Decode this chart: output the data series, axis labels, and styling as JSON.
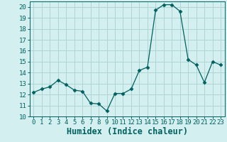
{
  "xlabel": "Humidex (Indice chaleur)",
  "ylabel": "",
  "xlim": [
    -0.5,
    23.5
  ],
  "ylim": [
    10,
    20.5
  ],
  "yticks": [
    10,
    11,
    12,
    13,
    14,
    15,
    16,
    17,
    18,
    19,
    20
  ],
  "xticks": [
    0,
    1,
    2,
    3,
    4,
    5,
    6,
    7,
    8,
    9,
    10,
    11,
    12,
    13,
    14,
    15,
    16,
    17,
    18,
    19,
    20,
    21,
    22,
    23
  ],
  "x": [
    0,
    1,
    2,
    3,
    4,
    5,
    6,
    7,
    8,
    9,
    10,
    11,
    12,
    13,
    14,
    15,
    16,
    17,
    18,
    19,
    20,
    21,
    22,
    23
  ],
  "y": [
    12.2,
    12.5,
    12.7,
    13.3,
    12.9,
    12.4,
    12.3,
    11.2,
    11.15,
    10.5,
    12.1,
    12.1,
    12.5,
    14.2,
    14.5,
    19.7,
    20.2,
    20.2,
    19.6,
    15.2,
    14.7,
    13.1,
    15.0,
    14.7
  ],
  "line_color": "#006060",
  "marker": "D",
  "marker_size": 2.5,
  "bg_color": "#d4efef",
  "grid_color": "#b0d4d4",
  "spine_color": "#006060",
  "tick_label_fontsize": 6.5,
  "xlabel_fontsize": 8.5
}
